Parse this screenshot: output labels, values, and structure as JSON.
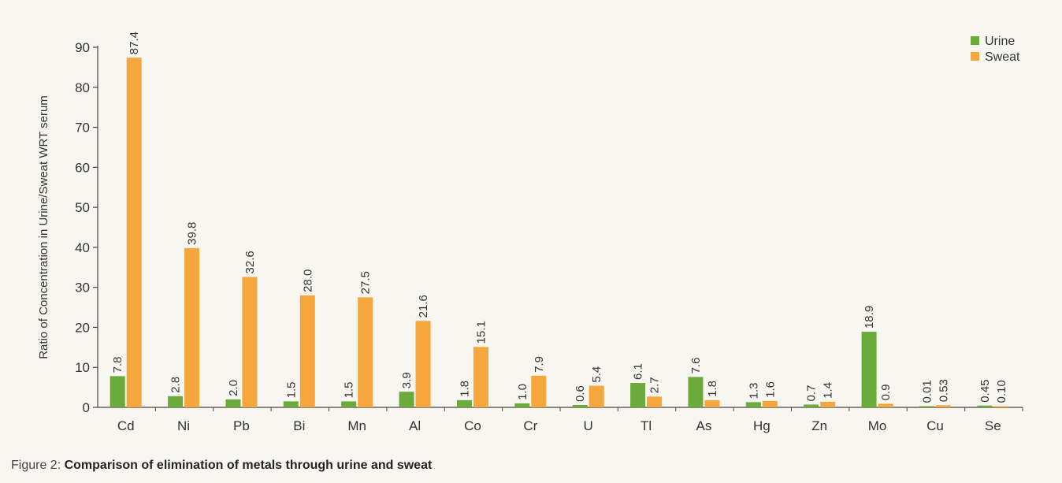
{
  "chart_data": {
    "type": "bar",
    "ylabel": "Ratio of Concentration in Urine/Sweat WRT serum",
    "xlabel": "",
    "ylim": [
      0,
      90
    ],
    "yticks": [
      "0",
      "10",
      "20",
      "30",
      "40",
      "50",
      "60",
      "70",
      "80",
      "90"
    ],
    "categories": [
      "Cd",
      "Ni",
      "Pb",
      "Bi",
      "Mn",
      "Al",
      "Co",
      "Cr",
      "U",
      "Tl",
      "As",
      "Hg",
      "Zn",
      "Mo",
      "Cu",
      "Se"
    ],
    "series": [
      {
        "name": "Urine",
        "color": "#6aab3c",
        "values": [
          7.8,
          2.8,
          2.0,
          1.5,
          1.5,
          3.9,
          1.8,
          1.0,
          0.6,
          6.1,
          7.6,
          1.3,
          0.7,
          18.9,
          0.01,
          0.45
        ],
        "labels": [
          "7.8",
          "2.8",
          "2.0",
          "1.5",
          "1.5",
          "3.9",
          "1.8",
          "1.0",
          "0.6",
          "6.1",
          "7.6",
          "1.3",
          "0.7",
          "18.9",
          "0.01",
          "0.45"
        ]
      },
      {
        "name": "Sweat",
        "color": "#f5a63c",
        "values": [
          87.4,
          39.8,
          32.6,
          28.0,
          27.5,
          21.6,
          15.1,
          7.9,
          5.4,
          2.7,
          1.8,
          1.6,
          1.4,
          0.9,
          0.53,
          0.1
        ],
        "labels": [
          "87.4",
          "39.8",
          "32.6",
          "28.0",
          "27.5",
          "21.6",
          "15.1",
          "7.9",
          "5.4",
          "2.7",
          "1.8",
          "1.6",
          "1.4",
          "0.9",
          "0.53",
          "0.10"
        ]
      }
    ],
    "legend": "top-right",
    "grid": false
  },
  "caption": {
    "prefix": "Figure 2: ",
    "text": "Comparison of elimination of metals through urine and sweat"
  }
}
